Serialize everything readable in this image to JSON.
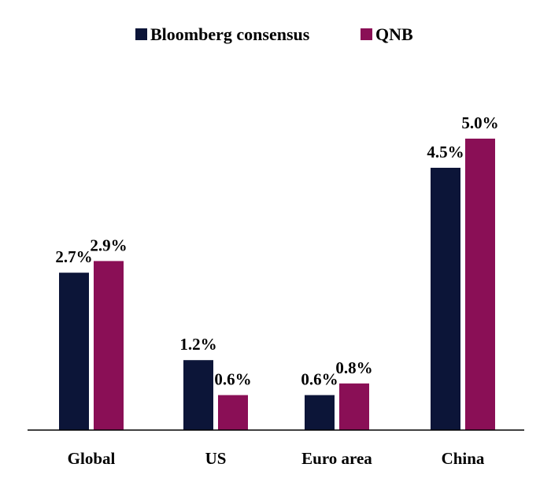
{
  "chart_data": {
    "type": "bar",
    "title": "",
    "xlabel": "",
    "ylabel": "",
    "ylim": [
      0,
      5.4
    ],
    "grid": false,
    "legend_position": "top-center",
    "categories": [
      "Global",
      "US",
      "Euro area",
      "China"
    ],
    "series": [
      {
        "name": "Bloomberg consensus",
        "color": "#0c1538",
        "values": [
          2.7,
          1.2,
          0.6,
          4.5
        ],
        "labels": [
          "2.7%",
          "1.2%",
          "0.6%",
          "4.5%"
        ]
      },
      {
        "name": "QNB",
        "color": "#8a0f56",
        "values": [
          2.9,
          0.6,
          0.8,
          5.0
        ],
        "labels": [
          "2.9%",
          "0.6%",
          "0.8%",
          "5.0%"
        ]
      }
    ]
  }
}
